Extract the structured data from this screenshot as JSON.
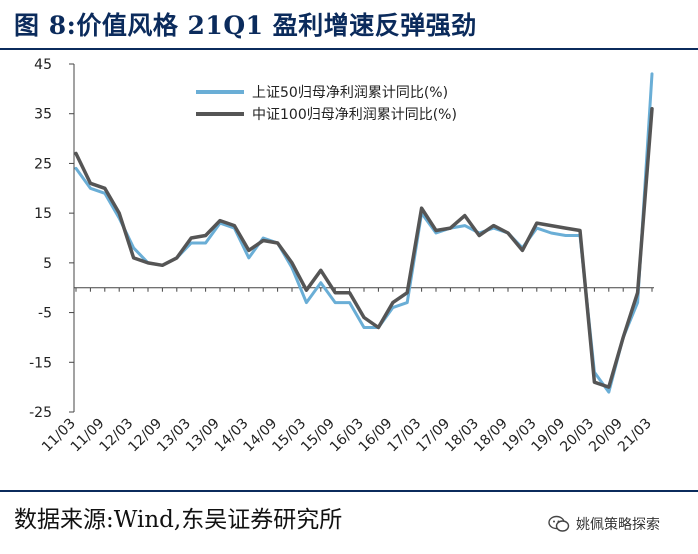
{
  "title": "图 8:价值风格 21Q1 盈利增速反弹强劲",
  "source": "数据来源:Wind,东吴证券研究所",
  "watermark": "姚佩策略探索",
  "chart_data": {
    "type": "line",
    "x": [
      "11/03",
      "11/06",
      "11/09",
      "11/12",
      "12/03",
      "12/06",
      "12/09",
      "12/12",
      "13/03",
      "13/06",
      "13/09",
      "13/12",
      "14/03",
      "14/06",
      "14/09",
      "14/12",
      "15/03",
      "15/06",
      "15/09",
      "15/12",
      "16/03",
      "16/06",
      "16/09",
      "16/12",
      "17/03",
      "17/06",
      "17/09",
      "17/12",
      "18/03",
      "18/06",
      "18/09",
      "18/12",
      "19/03",
      "19/06",
      "19/09",
      "19/12",
      "20/03",
      "20/06",
      "20/09",
      "20/12",
      "21/03"
    ],
    "x_tick_labels": [
      "11/03",
      "11/09",
      "12/03",
      "12/09",
      "13/03",
      "13/09",
      "14/03",
      "14/09",
      "15/03",
      "15/09",
      "16/03",
      "16/09",
      "17/03",
      "17/09",
      "18/03",
      "18/09",
      "19/03",
      "19/09",
      "20/03",
      "20/09",
      "21/03"
    ],
    "ylim": [
      -25,
      45
    ],
    "yticks": [
      -25,
      -15,
      -5,
      5,
      15,
      25,
      35,
      45
    ],
    "legend_position": "top-center",
    "series": [
      {
        "name": "上证50归母净利润累计同比(%)",
        "color": "#6aaed6",
        "values": [
          24,
          20,
          19,
          14,
          8,
          5,
          4.5,
          6,
          9,
          9,
          13,
          12,
          6,
          10,
          9,
          4,
          -3,
          1,
          -3,
          -3,
          -8,
          -8,
          -4,
          -3,
          15,
          11,
          12,
          12.5,
          11,
          12,
          11,
          8,
          12,
          11,
          10.5,
          10.5,
          -17,
          -21,
          -10,
          -3,
          43
        ]
      },
      {
        "name": "中证100归母净利润累计同比(%)",
        "color": "#555555",
        "values": [
          27,
          21,
          20,
          15,
          6,
          5,
          4.5,
          6,
          10,
          10.5,
          13.5,
          12.5,
          7.5,
          9.5,
          9,
          5,
          -0.5,
          3.5,
          -1,
          -1,
          -6,
          -8,
          -3,
          -1,
          16,
          11.5,
          12,
          14.5,
          10.5,
          12.5,
          11,
          7.5,
          13,
          12.5,
          12,
          11.5,
          -19,
          -20,
          -10,
          -1,
          36
        ]
      }
    ]
  }
}
